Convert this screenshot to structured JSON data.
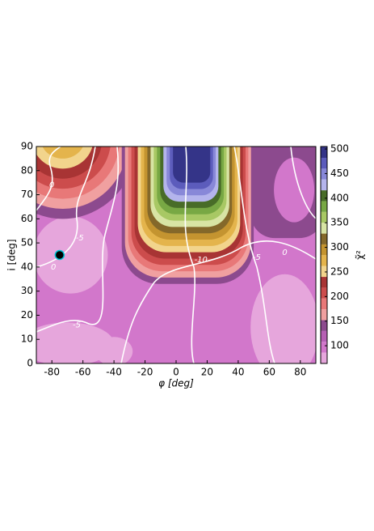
{
  "chart_data": {
    "type": "contour",
    "xlabel": "φ [deg]",
    "ylabel": "i [deg]",
    "colorbar_label": "χ̃²",
    "xlim": [
      -90,
      90
    ],
    "xticks": [
      -80,
      -60,
      -40,
      -20,
      0,
      20,
      40,
      60,
      80
    ],
    "ylim": [
      0,
      90
    ],
    "yticks": [
      0,
      10,
      20,
      30,
      40,
      50,
      60,
      70,
      80,
      90
    ],
    "levels": [
      64,
      86,
      108,
      130,
      152,
      174,
      196,
      218,
      240,
      262,
      284,
      306,
      328,
      350,
      372,
      394,
      416,
      438,
      460,
      482,
      505
    ],
    "colors": [
      "#e6a6dc",
      "#d277cb",
      "#b660b4",
      "#8c4a8e",
      "#f0a0a0",
      "#e87878",
      "#cc4c4c",
      "#a83434",
      "#f2d48c",
      "#e4b44c",
      "#c49430",
      "#84682a",
      "#d8e4a4",
      "#a8c864",
      "#78a844",
      "#486c28",
      "#b4b4ec",
      "#8888d8",
      "#5c5cbc",
      "#343488"
    ],
    "colorbar_ticks": [
      100,
      150,
      200,
      250,
      300,
      350,
      400,
      450,
      500
    ],
    "contour_labels": [
      0,
      -5,
      0,
      -5,
      -10,
      -5,
      0
    ],
    "marker": {
      "x": -75,
      "y": 45,
      "color": "#000000",
      "edgecolor": "#00c8d8"
    }
  }
}
